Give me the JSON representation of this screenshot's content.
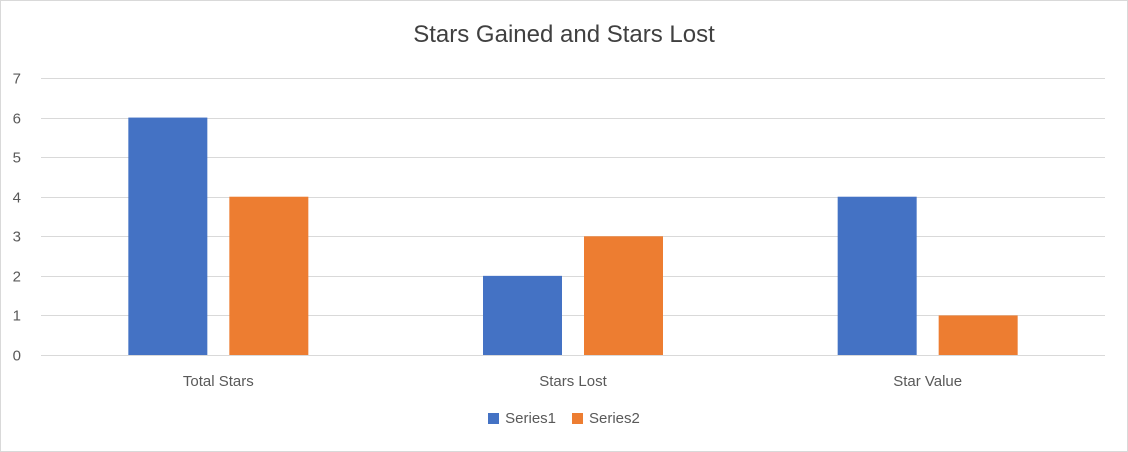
{
  "chart_data": {
    "type": "bar",
    "title": "Stars Gained and Stars Lost",
    "categories": [
      "Total Stars",
      "Stars Lost",
      "Star Value"
    ],
    "series": [
      {
        "name": "Series1",
        "values": [
          6,
          2,
          4
        ],
        "color": "#4472c4"
      },
      {
        "name": "Series2",
        "values": [
          4,
          3,
          1
        ],
        "color": "#ed7d31"
      }
    ],
    "ylim": [
      0,
      7
    ],
    "yticks": [
      0,
      1,
      2,
      3,
      4,
      5,
      6,
      7
    ],
    "grid": true,
    "legend_position": "bottom"
  }
}
